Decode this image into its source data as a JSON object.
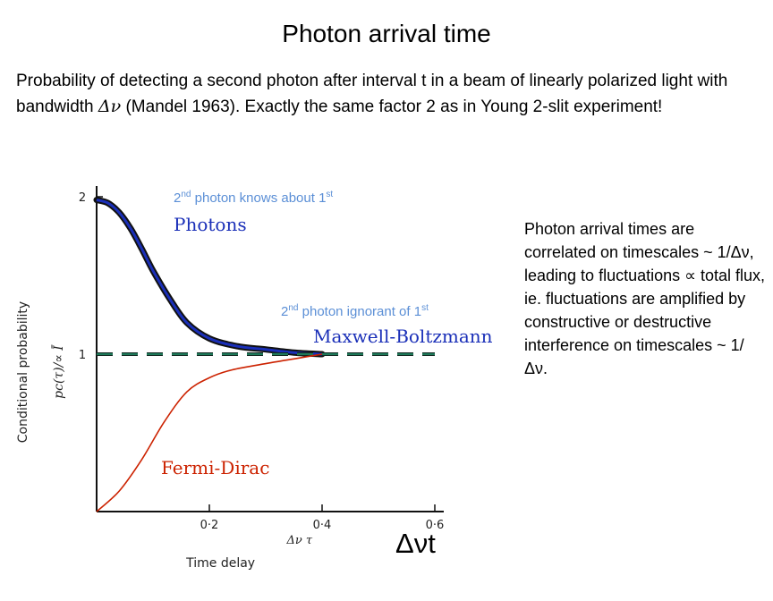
{
  "title": "Photon arrival time",
  "intro": {
    "before": "Probability of detecting a second photon after interval t in a beam of linearly polarized light with bandwidth ",
    "symbol": "Δν",
    "after": " (Mandel 1963). Exactly the same factor 2 as in Young 2-slit experiment!"
  },
  "side_text": "Photon arrival times are correlated on timescales ~ 1/Δν, leading to fluctuations ∝ total flux, ie. fluctuations are amplified by constructive or destructive interference on timescales ~ 1/ Δν.",
  "annotations": {
    "knows_pre": "2",
    "knows_sup": "nd",
    "knows_mid": " photon knows about 1",
    "knows_sup2": "st",
    "ign_pre": "2",
    "ign_sup": "nd",
    "ign_mid": " photon ignorant of 1",
    "ign_sup2": "st"
  },
  "dt_label": "Δνt",
  "colors": {
    "photons": "#1a2fb8",
    "maxwell": "#1e7a5a",
    "fermi": "#cc2200",
    "annotation": "#5b8fd6"
  },
  "chart_data": {
    "type": "line",
    "xlabel": "Time delay",
    "xlabel2": "Δν τ",
    "ylabel": "Conditional probability",
    "ylabel2": "pc(τ)/∝ Ī",
    "xlim": [
      0,
      0.6
    ],
    "ylim": [
      0,
      2
    ],
    "x_ticks": [
      "0·2",
      "0·4",
      "0·6"
    ],
    "y_ticks": [
      "1",
      "2"
    ],
    "series": [
      {
        "name": "Photons",
        "style": "data-band",
        "x": [
          0,
          0.02,
          0.04,
          0.06,
          0.08,
          0.1,
          0.13,
          0.16,
          0.2,
          0.25,
          0.3,
          0.35,
          0.4
        ],
        "y": [
          1.98,
          1.96,
          1.9,
          1.8,
          1.67,
          1.53,
          1.35,
          1.2,
          1.1,
          1.05,
          1.03,
          1.01,
          1.0
        ]
      },
      {
        "name": "Maxwell-Boltzmann",
        "style": "dashed",
        "x": [
          0,
          0.6
        ],
        "y": [
          1.0,
          1.0
        ]
      },
      {
        "name": "Fermi-Dirac",
        "style": "line",
        "x": [
          0,
          0.04,
          0.08,
          0.12,
          0.16,
          0.2,
          0.24,
          0.3,
          0.35,
          0.4
        ],
        "y": [
          0.0,
          0.13,
          0.33,
          0.57,
          0.76,
          0.85,
          0.9,
          0.94,
          0.97,
          1.0
        ]
      }
    ]
  }
}
